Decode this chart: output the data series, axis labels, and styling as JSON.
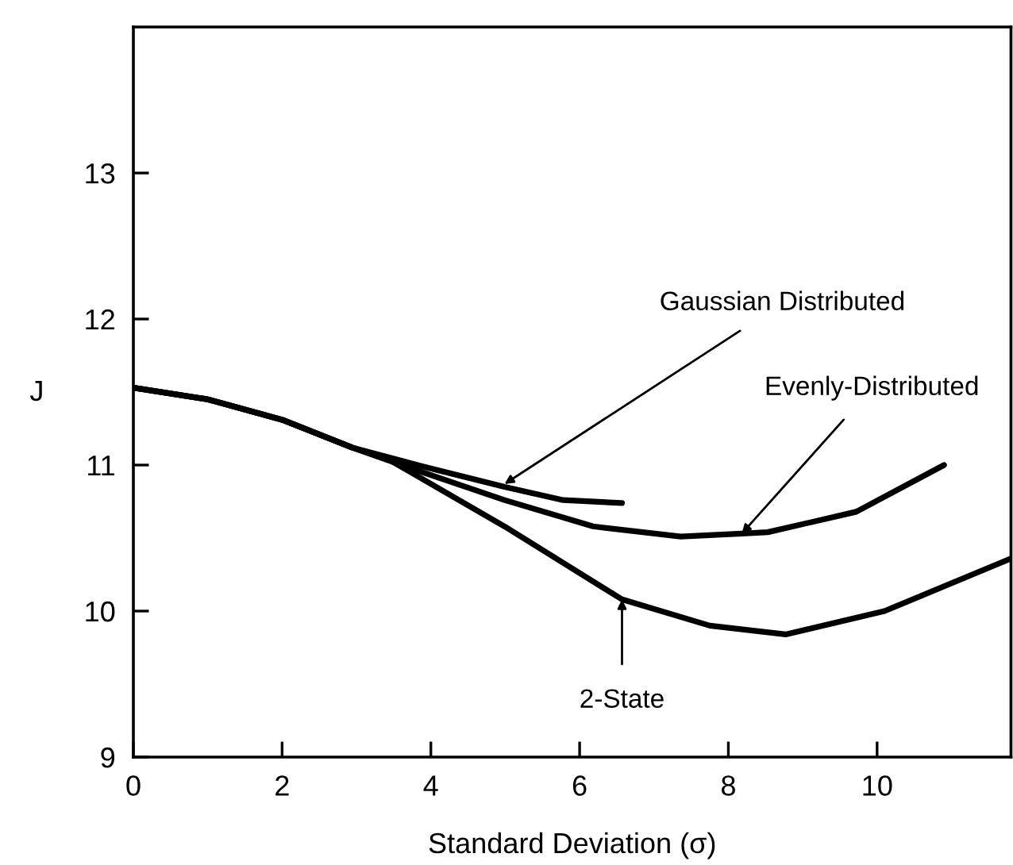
{
  "chart_data": {
    "type": "line",
    "xlabel": "Standard Deviation (σ)",
    "ylabel": "J",
    "xlim": [
      0,
      11.8
    ],
    "ylim": [
      9,
      14
    ],
    "xticks": [
      0,
      2,
      4,
      6,
      8,
      10
    ],
    "yticks": [
      9,
      10,
      11,
      12,
      13
    ],
    "grid": false,
    "line_style": "solid",
    "marker": "none",
    "series": [
      {
        "color": "#000000",
        "x": [
          0,
          1,
          2,
          2.94,
          3.89,
          4.99,
          5.78,
          6.57
        ],
        "values": [
          11.53,
          11.45,
          11.31,
          11.12,
          10.99,
          10.85,
          10.76,
          10.74
        ]
      },
      {
        "color": "#000000",
        "x": [
          0,
          1,
          2,
          2.94,
          3.89,
          4.99,
          6.18,
          7.36,
          8.18,
          8.53,
          9.72,
          10.9
        ],
        "values": [
          11.53,
          11.45,
          11.31,
          11.12,
          10.95,
          10.76,
          10.58,
          10.51,
          10.53,
          10.54,
          10.68,
          11.0
        ]
      },
      {
        "color": "#000000",
        "x": [
          0,
          1,
          2,
          2.94,
          3.46,
          4.99,
          6.57,
          7.75,
          8.77,
          10.1,
          11.8
        ],
        "values": [
          11.53,
          11.45,
          11.31,
          11.12,
          11.03,
          10.58,
          10.08,
          9.9,
          9.84,
          10.0,
          10.36
        ]
      }
    ],
    "annotations": [
      {
        "text": "Gaussian Distributed",
        "x": 4.99,
        "y": 10.87
      },
      {
        "text": "Evenly-Distributed",
        "x": 8.18,
        "y": 10.53
      },
      {
        "text": "2-State",
        "x": 6.57,
        "y": 10.08
      }
    ]
  }
}
